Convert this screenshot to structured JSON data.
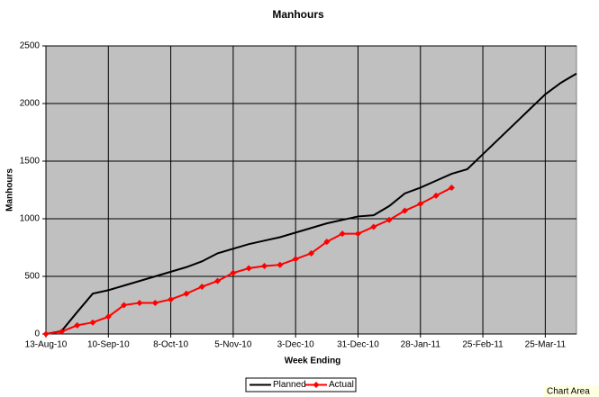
{
  "chart_data": {
    "type": "line",
    "title": "Manhours",
    "xlabel": "Week Ending",
    "ylabel": "Manhours",
    "x": [
      "13-Aug-10",
      "20-Aug-10",
      "27-Aug-10",
      "3-Sep-10",
      "10-Sep-10",
      "17-Sep-10",
      "24-Sep-10",
      "1-Oct-10",
      "8-Oct-10",
      "15-Oct-10",
      "22-Oct-10",
      "29-Oct-10",
      "5-Nov-10",
      "12-Nov-10",
      "19-Nov-10",
      "26-Nov-10",
      "3-Dec-10",
      "10-Dec-10",
      "17-Dec-10",
      "24-Dec-10",
      "31-Dec-10",
      "7-Jan-11",
      "14-Jan-11",
      "21-Jan-11",
      "28-Jan-11",
      "4-Feb-11",
      "11-Feb-11",
      "18-Feb-11",
      "25-Feb-11",
      "4-Mar-11",
      "11-Mar-11",
      "18-Mar-11",
      "25-Mar-11",
      "1-Apr-11",
      "8-Apr-11"
    ],
    "series": [
      {
        "name": "Planned",
        "color": "#000000",
        "marker": false,
        "values": [
          0,
          25,
          190,
          350,
          380,
          420,
          460,
          500,
          540,
          580,
          630,
          700,
          740,
          780,
          810,
          840,
          880,
          920,
          960,
          990,
          1020,
          1030,
          1110,
          1220,
          1270,
          1330,
          1390,
          1430,
          1560,
          1690,
          1820,
          1950,
          2080,
          2180,
          2260
        ]
      },
      {
        "name": "Actual",
        "color": "#ff0000",
        "marker": true,
        "values": [
          0,
          20,
          75,
          100,
          150,
          250,
          270,
          270,
          300,
          350,
          410,
          460,
          530,
          570,
          590,
          600,
          650,
          700,
          800,
          870,
          870,
          930,
          990,
          1070,
          1130,
          1200,
          1270,
          null,
          null,
          null,
          null,
          null,
          null,
          null,
          null
        ]
      }
    ],
    "xlim": [
      "13-Aug-10",
      "8-Apr-11"
    ],
    "xticks": [
      "13-Aug-10",
      "10-Sep-10",
      "8-Oct-10",
      "5-Nov-10",
      "3-Dec-10",
      "31-Dec-10",
      "28-Jan-11",
      "25-Feb-11",
      "25-Mar-11"
    ],
    "ylim": [
      0,
      2500
    ],
    "yticks": [
      0,
      500,
      1000,
      1500,
      2000,
      2500
    ],
    "grid": true,
    "legend": "bottom",
    "tooltip": "Chart Area"
  }
}
